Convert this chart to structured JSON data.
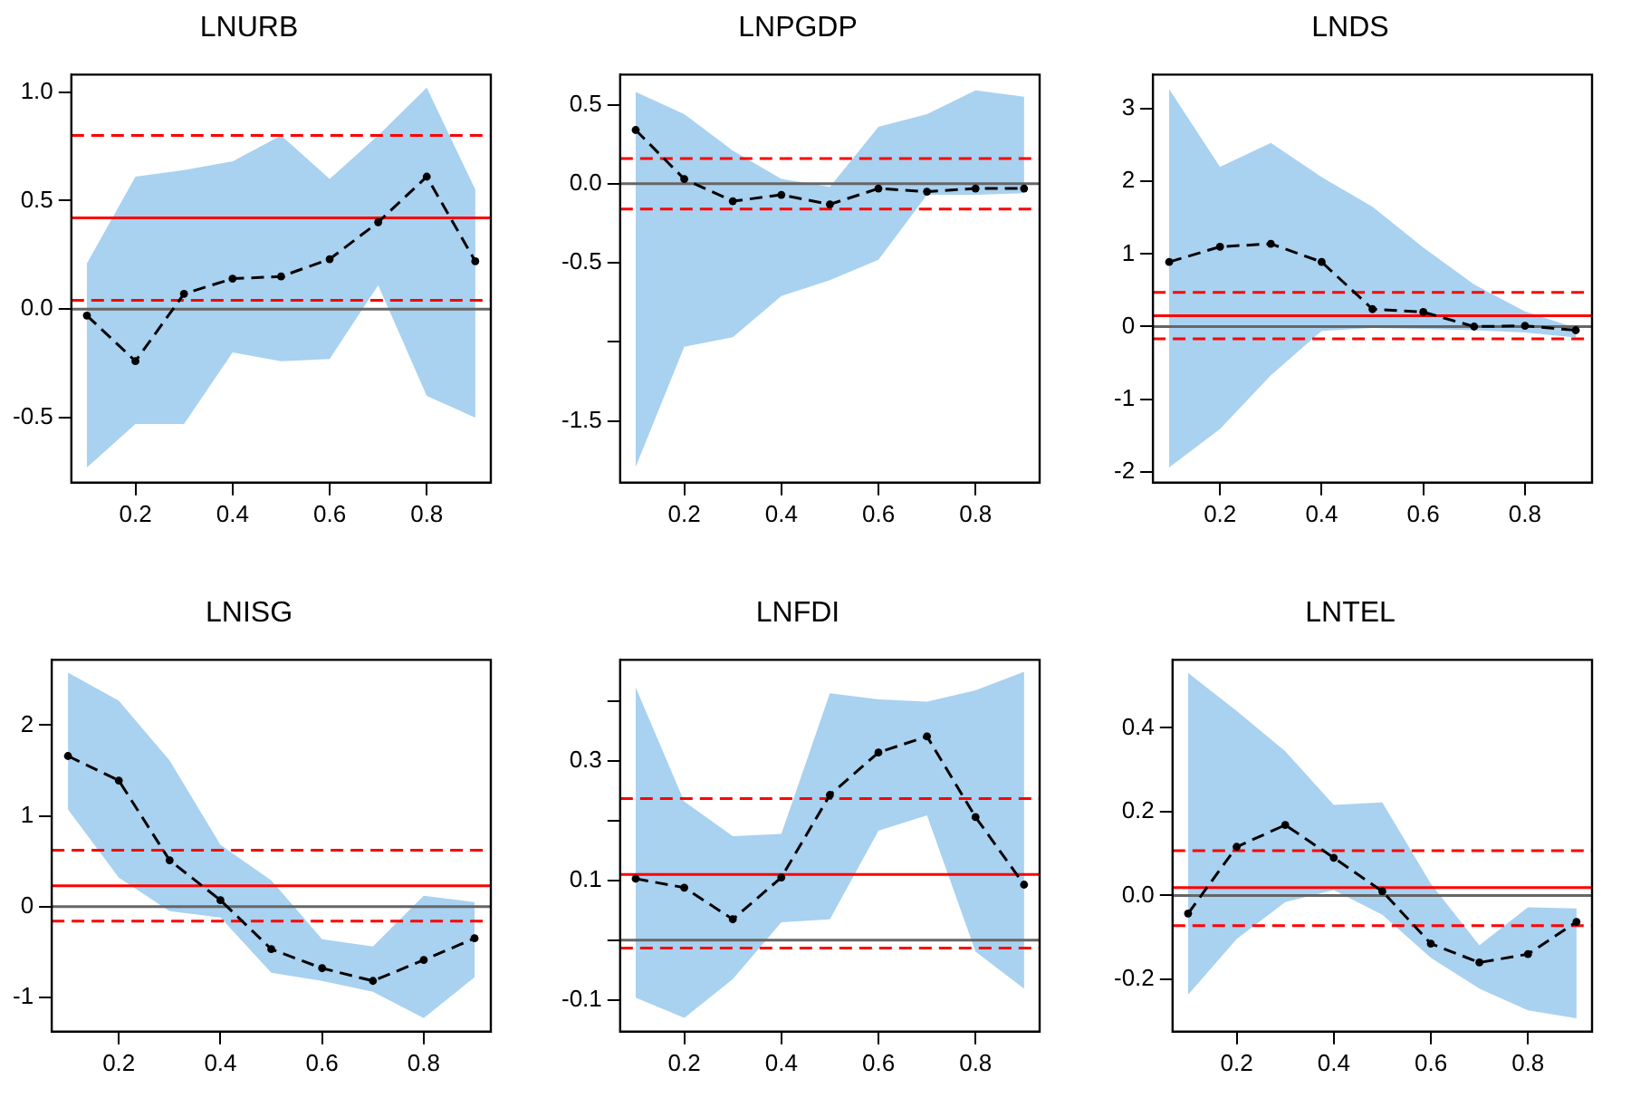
{
  "chart_data": [
    {
      "type": "line",
      "title": "LNURB",
      "x": [
        0.1,
        0.2,
        0.3,
        0.4,
        0.5,
        0.6,
        0.7,
        0.8,
        0.9
      ],
      "xlim": [
        0.068,
        0.932
      ],
      "xticks": [
        0.2,
        0.4,
        0.6,
        0.8
      ],
      "ylim": [
        -0.8,
        1.08
      ],
      "yticks": [
        -0.5,
        {
          "value": 0,
          "label": "0.0"
        },
        0.5,
        {
          "value": 1,
          "label": "1.0"
        }
      ],
      "grid": false,
      "marker": "circle",
      "line_style": "dashed",
      "series": [
        {
          "color": "#000000",
          "values": [
            -0.03,
            -0.24,
            0.07,
            0.14,
            0.15,
            0.23,
            0.4,
            0.61,
            0.22
          ],
          "lower": [
            -0.73,
            -0.53,
            -0.53,
            -0.2,
            -0.24,
            -0.23,
            0.11,
            -0.4,
            -0.5
          ],
          "upper": [
            0.21,
            0.61,
            0.64,
            0.68,
            0.8,
            0.6,
            0.8,
            1.02,
            0.55
          ]
        }
      ],
      "ref_lines": [
        {
          "axis": "y",
          "value": 0,
          "color": "#666666",
          "line_style": "solid"
        },
        {
          "axis": "y",
          "value": 0.42,
          "color": "#ff0000",
          "line_style": "solid"
        },
        {
          "axis": "y",
          "value": 0.8,
          "color": "#ff0000",
          "line_style": "dashed"
        },
        {
          "axis": "y",
          "value": 0.04,
          "color": "#ff0000",
          "line_style": "dashed"
        }
      ]
    },
    {
      "type": "line",
      "title": "LNPGDP",
      "x": [
        0.1,
        0.2,
        0.3,
        0.4,
        0.5,
        0.6,
        0.7,
        0.8,
        0.9
      ],
      "xlim": [
        0.068,
        0.932
      ],
      "xticks": [
        0.2,
        0.4,
        0.6,
        0.8
      ],
      "ylim": [
        -1.89,
        0.69
      ],
      "yticks": [
        -1.5,
        {
          "value": -1,
          "label": null
        },
        -0.5,
        {
          "value": 0,
          "label": "0.0"
        },
        0.5
      ],
      "grid": false,
      "marker": "circle",
      "line_style": "dashed",
      "series": [
        {
          "color": "#000000",
          "values": [
            0.34,
            0.03,
            -0.11,
            -0.07,
            -0.13,
            -0.03,
            -0.05,
            -0.03,
            -0.03
          ],
          "lower": [
            -1.79,
            -1.03,
            -0.97,
            -0.71,
            -0.61,
            -0.48,
            -0.07,
            -0.07,
            -0.06
          ],
          "upper": [
            0.58,
            0.44,
            0.21,
            0.03,
            -0.02,
            0.36,
            0.44,
            0.59,
            0.55
          ]
        }
      ],
      "ref_lines": [
        {
          "axis": "y",
          "value": 0,
          "color": "#666666",
          "line_style": "solid"
        },
        {
          "axis": "y",
          "value": 0.16,
          "color": "#ff0000",
          "line_style": "dashed"
        },
        {
          "axis": "y",
          "value": -0.16,
          "color": "#ff0000",
          "line_style": "dashed"
        }
      ]
    },
    {
      "type": "line",
      "title": "LNDS",
      "x": [
        0.1,
        0.2,
        0.3,
        0.4,
        0.5,
        0.6,
        0.7,
        0.8,
        0.9
      ],
      "xlim": [
        0.068,
        0.932
      ],
      "xticks": [
        0.2,
        0.4,
        0.6,
        0.8
      ],
      "ylim": [
        -2.15,
        3.47
      ],
      "yticks": [
        -2,
        -1,
        0,
        1,
        2,
        3
      ],
      "grid": false,
      "marker": "circle",
      "line_style": "dashed",
      "series": [
        {
          "color": "#000000",
          "values": [
            0.89,
            1.1,
            1.14,
            0.89,
            0.24,
            0.2,
            0,
            0.01,
            -0.05
          ],
          "lower": [
            -1.94,
            -1.41,
            -0.67,
            -0.06,
            -0.02,
            -0.03,
            -0.05,
            -0.08,
            -0.15
          ],
          "upper": [
            3.27,
            2.2,
            2.53,
            2.06,
            1.65,
            1.09,
            0.58,
            0.21,
            -0.02
          ]
        }
      ],
      "ref_lines": [
        {
          "axis": "y",
          "value": 0,
          "color": "#666666",
          "line_style": "solid"
        },
        {
          "axis": "y",
          "value": 0.15,
          "color": "#ff0000",
          "line_style": "solid"
        },
        {
          "axis": "y",
          "value": 0.47,
          "color": "#ff0000",
          "line_style": "dashed"
        },
        {
          "axis": "y",
          "value": -0.17,
          "color": "#ff0000",
          "line_style": "dashed"
        }
      ]
    },
    {
      "type": "line",
      "title": "LNISG",
      "x": [
        0.1,
        0.2,
        0.3,
        0.4,
        0.5,
        0.6,
        0.7,
        0.8,
        0.9
      ],
      "xlim": [
        0.068,
        0.932
      ],
      "xticks": [
        0.2,
        0.4,
        0.6,
        0.8
      ],
      "ylim": [
        -1.38,
        2.72
      ],
      "yticks": [
        -1,
        0,
        1,
        2
      ],
      "grid": false,
      "marker": "circle",
      "line_style": "dashed",
      "series": [
        {
          "color": "#000000",
          "values": [
            1.66,
            1.39,
            0.51,
            0.07,
            -0.47,
            -0.68,
            -0.82,
            -0.59,
            -0.35
          ],
          "lower": [
            1.07,
            0.32,
            -0.05,
            -0.12,
            -0.73,
            -0.82,
            -0.94,
            -1.23,
            -0.78
          ],
          "upper": [
            2.58,
            2.27,
            1.61,
            0.68,
            0.29,
            -0.36,
            -0.44,
            0.12,
            0.05
          ]
        }
      ],
      "ref_lines": [
        {
          "axis": "y",
          "value": 0,
          "color": "#666666",
          "line_style": "solid"
        },
        {
          "axis": "y",
          "value": 0.23,
          "color": "#ff0000",
          "line_style": "solid"
        },
        {
          "axis": "y",
          "value": 0.62,
          "color": "#ff0000",
          "line_style": "dashed"
        },
        {
          "axis": "y",
          "value": -0.16,
          "color": "#ff0000",
          "line_style": "dashed"
        }
      ]
    },
    {
      "type": "line",
      "title": "LNFDI",
      "x": [
        0.1,
        0.2,
        0.3,
        0.4,
        0.5,
        0.6,
        0.7,
        0.8,
        0.9
      ],
      "xlim": [
        0.068,
        0.932
      ],
      "xticks": [
        0.2,
        0.4,
        0.6,
        0.8
      ],
      "ylim": [
        -0.153,
        0.469
      ],
      "yticks": [
        -0.1,
        {
          "value": 0,
          "label": null
        },
        0.1,
        {
          "value": 0.2,
          "label": null
        },
        0.3,
        {
          "value": 0.4,
          "label": null
        }
      ],
      "grid": false,
      "marker": "circle",
      "line_style": "dashed",
      "series": [
        {
          "color": "#000000",
          "values": [
            0.103,
            0.088,
            0.035,
            0.105,
            0.243,
            0.314,
            0.341,
            0.206,
            0.093
          ],
          "lower": [
            -0.096,
            -0.13,
            -0.065,
            0.03,
            0.035,
            0.183,
            0.209,
            -0.019,
            -0.081
          ],
          "upper": [
            0.423,
            0.232,
            0.174,
            0.178,
            0.413,
            0.403,
            0.399,
            0.418,
            0.449
          ]
        }
      ],
      "ref_lines": [
        {
          "axis": "y",
          "value": 0,
          "color": "#666666",
          "line_style": "solid"
        },
        {
          "axis": "y",
          "value": 0.11,
          "color": "#ff0000",
          "line_style": "solid"
        },
        {
          "axis": "y",
          "value": 0.237,
          "color": "#ff0000",
          "line_style": "dashed"
        },
        {
          "axis": "y",
          "value": -0.013,
          "color": "#ff0000",
          "line_style": "dashed"
        }
      ]
    },
    {
      "type": "line",
      "title": "LNTEL",
      "x": [
        0.1,
        0.2,
        0.3,
        0.4,
        0.5,
        0.6,
        0.7,
        0.8,
        0.9
      ],
      "xlim": [
        0.068,
        0.932
      ],
      "xticks": [
        0.2,
        0.4,
        0.6,
        0.8
      ],
      "ylim": [
        -0.325,
        0.562
      ],
      "yticks": [
        -0.2,
        {
          "value": 0,
          "label": "0.0"
        },
        0.2,
        0.4
      ],
      "grid": false,
      "marker": "circle",
      "line_style": "dashed",
      "series": [
        {
          "color": "#000000",
          "values": [
            -0.043,
            0.116,
            0.168,
            0.09,
            0.01,
            -0.115,
            -0.16,
            -0.14,
            -0.063
          ],
          "lower": [
            -0.237,
            -0.104,
            -0.016,
            0.013,
            -0.046,
            -0.149,
            -0.222,
            -0.274,
            -0.293
          ],
          "upper": [
            0.531,
            0.44,
            0.344,
            0.216,
            0.222,
            0.028,
            -0.119,
            -0.028,
            -0.031
          ]
        }
      ],
      "ref_lines": [
        {
          "axis": "y",
          "value": 0,
          "color": "#666666",
          "line_style": "solid"
        },
        {
          "axis": "y",
          "value": 0.019,
          "color": "#ff0000",
          "line_style": "solid"
        },
        {
          "axis": "y",
          "value": 0.107,
          "color": "#ff0000",
          "line_style": "dashed"
        },
        {
          "axis": "y",
          "value": -0.072,
          "color": "#ff0000",
          "line_style": "dashed"
        }
      ]
    }
  ]
}
